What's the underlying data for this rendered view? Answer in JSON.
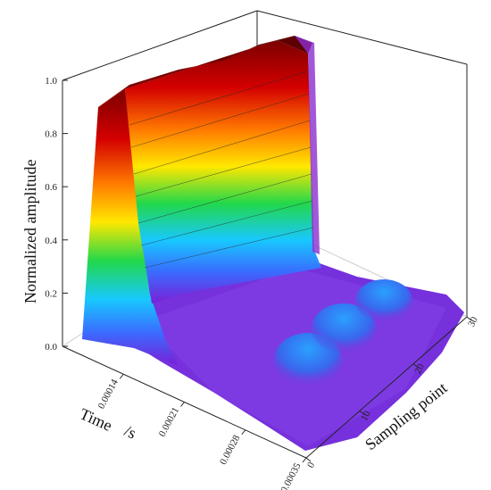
{
  "chart_data": {
    "type": "surface",
    "zlabel": "Normalized   amplitude",
    "xlabel_part1": "Time",
    "xlabel_part2": "/s",
    "ylabel": "Sampling point",
    "z_ticks": [
      "0.0",
      "0.2",
      "0.4",
      "0.6",
      "0.8",
      "1.0"
    ],
    "z_values": [
      0,
      0.2,
      0.4,
      0.6,
      0.8,
      1.0
    ],
    "zlim": [
      0,
      1.0
    ],
    "time_ticks": [
      "0.00014",
      "0.00021",
      "0.00028",
      "0.00035"
    ],
    "time_values": [
      0.00014,
      0.00021,
      0.00028,
      0.00035
    ],
    "time_range": [
      7e-05,
      0.00035
    ],
    "sampling_ticks": [
      "0",
      "10",
      "20",
      "30"
    ],
    "sampling_values": [
      0,
      10,
      20,
      30
    ],
    "sampling_range": [
      0,
      30
    ],
    "ridge": {
      "time_start": 9e-05,
      "time_end": 0.00013,
      "peak_amplitude": 0.98,
      "note_shape": "plateau along all sampling points"
    },
    "bumps": [
      {
        "time": 0.00028,
        "sampling_point": 5,
        "amplitude": 0.18
      },
      {
        "time": 0.00028,
        "sampling_point": 15,
        "amplitude": 0.19
      },
      {
        "time": 0.00028,
        "sampling_point": 25,
        "amplitude": 0.16
      }
    ],
    "colormap": [
      "#7a1fd6",
      "#3a6bff",
      "#18c8ff",
      "#22d84a",
      "#ffe800",
      "#ff7a00",
      "#d40000",
      "#8a0000"
    ],
    "grid": false
  }
}
